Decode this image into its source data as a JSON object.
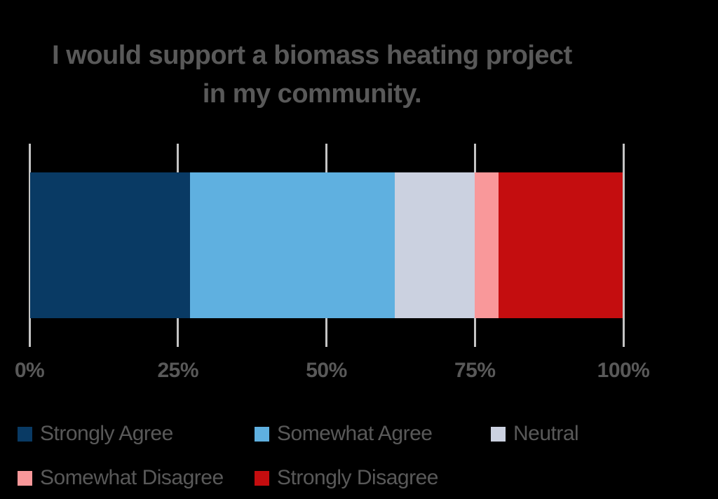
{
  "title": {
    "lines": [
      "I would support a biomass heating project",
      "in my community."
    ]
  },
  "chart_data": {
    "type": "bar",
    "variant": "horizontal-stacked-100-percent",
    "title": "I would support a biomass heating project in my community.",
    "categories": [
      "Strongly Agree",
      "Somewhat Agree",
      "Neutral",
      "Somewhat Disagree",
      "Strongly Disagree"
    ],
    "values": [
      27,
      34.5,
      13.5,
      4,
      21
    ],
    "unit": "%",
    "series_colors": [
      "#093A64",
      "#5FB0E0",
      "#CBD1E0",
      "#F9989A",
      "#C40D0F"
    ],
    "xlim": [
      0,
      100
    ],
    "x_ticks": [
      {
        "label": "0%",
        "value": 0
      },
      {
        "label": "25%",
        "value": 25
      },
      {
        "label": "50%",
        "value": 50
      },
      {
        "label": "75%",
        "value": 75
      },
      {
        "label": "100%",
        "value": 100
      }
    ],
    "grid": "vertical",
    "legend_position": "bottom",
    "legend_rows": [
      [
        "Strongly Agree",
        "Somewhat Agree",
        "Neutral"
      ],
      [
        "Somewhat Disagree",
        "Strongly Disagree"
      ]
    ]
  },
  "style_colors": {
    "background": "#000000",
    "text": "#595959",
    "gridline": "#C4C4C4"
  }
}
